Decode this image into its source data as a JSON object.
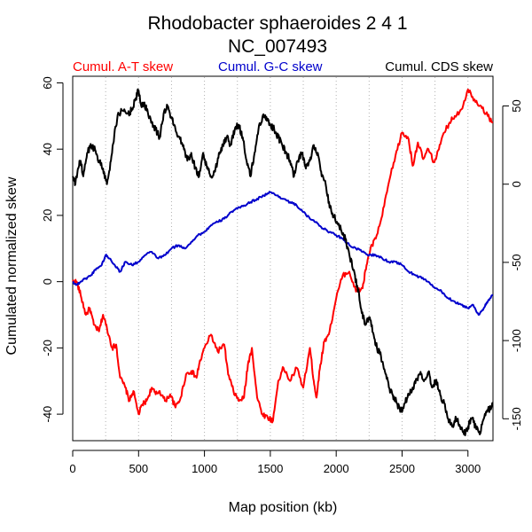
{
  "chart_data": {
    "type": "line",
    "title": "Rhodobacter sphaeroides 2 4 1",
    "subtitle": "NC_007493",
    "xlabel": "Map position (kb)",
    "ylabel": "Cumulated normalized skew",
    "xlim": [
      0,
      3190
    ],
    "ylim": [
      -48,
      62
    ],
    "y2lim": [
      -164,
      69
    ],
    "xticks": [
      0,
      500,
      1000,
      1500,
      2000,
      2500,
      3000
    ],
    "yticks": [
      60,
      40,
      20,
      0,
      -20,
      -40
    ],
    "y2ticks": [
      50,
      0,
      -50,
      -100,
      -150
    ],
    "xgrid": [
      0,
      250,
      500,
      750,
      1000,
      1250,
      1500,
      1750,
      2000,
      2250,
      2500,
      2750,
      3000
    ],
    "grid": "vertical dotted",
    "legend_placement": "top",
    "series": [
      {
        "name": "Cumul. A-T skew",
        "color": "#ff0000",
        "axis": "left",
        "x": [
          0,
          30,
          60,
          100,
          130,
          160,
          200,
          230,
          260,
          300,
          330,
          360,
          400,
          430,
          460,
          500,
          530,
          560,
          600,
          630,
          660,
          700,
          740,
          780,
          820,
          860,
          900,
          940,
          960,
          1000,
          1050,
          1100,
          1150,
          1180,
          1220,
          1260,
          1300,
          1330,
          1360,
          1400,
          1440,
          1480,
          1520,
          1560,
          1600,
          1650,
          1700,
          1750,
          1800,
          1830,
          1850,
          1880,
          1910,
          1950,
          2000,
          2050,
          2100,
          2150,
          2200,
          2230,
          2260,
          2300,
          2350,
          2400,
          2450,
          2500,
          2550,
          2580,
          2620,
          2660,
          2700,
          2740,
          2780,
          2820,
          2860,
          2900,
          2950,
          3000,
          3050,
          3100,
          3150,
          3190
        ],
        "values": [
          0,
          0,
          -4,
          -10,
          -8,
          -13,
          -15,
          -10,
          -14,
          -20,
          -19,
          -29,
          -32,
          -36,
          -33,
          -40,
          -37,
          -36,
          -32,
          -34,
          -33,
          -36,
          -34,
          -38,
          -35,
          -28,
          -27,
          -29,
          -25,
          -20,
          -16,
          -21,
          -19,
          -28,
          -33,
          -36,
          -35,
          -25,
          -20,
          -35,
          -40,
          -41,
          -42,
          -30,
          -26,
          -30,
          -26,
          -32,
          -20,
          -30,
          -35,
          -25,
          -18,
          -15,
          -5,
          2,
          3,
          -3,
          -2,
          5,
          10,
          13,
          20,
          30,
          38,
          45,
          43,
          35,
          42,
          37,
          40,
          36,
          40,
          45,
          48,
          50,
          52,
          58,
          55,
          53,
          50,
          48
        ]
      },
      {
        "name": "Cumul. G-C skew",
        "color": "#0000cc",
        "axis": "left",
        "x": [
          0,
          30,
          60,
          100,
          140,
          180,
          220,
          250,
          280,
          320,
          360,
          400,
          450,
          500,
          550,
          600,
          650,
          700,
          750,
          800,
          850,
          900,
          950,
          1000,
          1050,
          1100,
          1150,
          1200,
          1250,
          1300,
          1350,
          1400,
          1450,
          1500,
          1550,
          1600,
          1650,
          1700,
          1750,
          1800,
          1850,
          1900,
          1950,
          2000,
          2050,
          2100,
          2150,
          2200,
          2250,
          2300,
          2350,
          2400,
          2450,
          2500,
          2550,
          2600,
          2650,
          2700,
          2750,
          2800,
          2850,
          2900,
          2950,
          3000,
          3040,
          3080,
          3120,
          3150,
          3190
        ],
        "values": [
          0,
          -1,
          0,
          1,
          2,
          4,
          5,
          8,
          7,
          5,
          3,
          6,
          5,
          6,
          8,
          9,
          7,
          8,
          10,
          11,
          10,
          12,
          14,
          15,
          17,
          18,
          19,
          21,
          22,
          23,
          24,
          25,
          26,
          27,
          26,
          25,
          24,
          23,
          21,
          19,
          18,
          16,
          15,
          14,
          13,
          11,
          10,
          9,
          8,
          8,
          7,
          6,
          6,
          5,
          3,
          2,
          1,
          0,
          -2,
          -3,
          -5,
          -6,
          -7,
          -8,
          -7,
          -10,
          -8,
          -6,
          -4
        ]
      },
      {
        "name": "Cumul. CDS skew",
        "color": "#000000",
        "axis": "right",
        "x": [
          0,
          20,
          40,
          60,
          80,
          110,
          140,
          170,
          200,
          230,
          260,
          290,
          320,
          350,
          380,
          420,
          450,
          480,
          500,
          520,
          540,
          570,
          600,
          630,
          660,
          690,
          720,
          750,
          780,
          810,
          840,
          870,
          900,
          930,
          960,
          990,
          1020,
          1050,
          1080,
          1110,
          1140,
          1170,
          1200,
          1230,
          1260,
          1290,
          1320,
          1350,
          1380,
          1410,
          1440,
          1470,
          1500,
          1530,
          1560,
          1590,
          1620,
          1650,
          1680,
          1710,
          1740,
          1770,
          1800,
          1830,
          1860,
          1890,
          1920,
          1950,
          1980,
          2010,
          2040,
          2070,
          2100,
          2130,
          2160,
          2190,
          2220,
          2250,
          2280,
          2310,
          2340,
          2370,
          2400,
          2430,
          2460,
          2490,
          2520,
          2550,
          2580,
          2610,
          2640,
          2670,
          2700,
          2730,
          2760,
          2790,
          2820,
          2850,
          2880,
          2910,
          2940,
          2970,
          3000,
          3030,
          3060,
          3090,
          3120,
          3150,
          3190
        ],
        "values": [
          5,
          0,
          10,
          15,
          5,
          20,
          25,
          22,
          15,
          10,
          0,
          15,
          35,
          45,
          47,
          45,
          48,
          55,
          60,
          50,
          52,
          46,
          40,
          35,
          30,
          45,
          50,
          42,
          35,
          30,
          25,
          15,
          20,
          10,
          5,
          20,
          10,
          5,
          8,
          20,
          25,
          30,
          25,
          35,
          38,
          30,
          15,
          5,
          20,
          35,
          43,
          43,
          38,
          35,
          30,
          25,
          20,
          15,
          5,
          15,
          20,
          10,
          15,
          25,
          20,
          5,
          0,
          -15,
          -20,
          -25,
          -30,
          -35,
          -45,
          -55,
          -65,
          -80,
          -90,
          -85,
          -95,
          -105,
          -110,
          -120,
          -130,
          -135,
          -140,
          -145,
          -140,
          -135,
          -130,
          -125,
          -120,
          -125,
          -120,
          -130,
          -125,
          -135,
          -140,
          -150,
          -155,
          -150,
          -155,
          -160,
          -155,
          -150,
          -155,
          -160,
          -150,
          -145,
          -140
        ]
      }
    ]
  }
}
